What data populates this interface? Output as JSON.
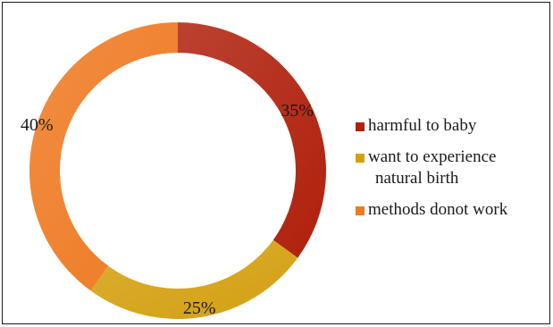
{
  "chart_data": {
    "type": "pie",
    "categories": [
      "harmful to baby",
      "want to experience natural birth",
      "methods donot work"
    ],
    "values": [
      35,
      25,
      40
    ],
    "data_labels": [
      "35%",
      "25%",
      "40%"
    ],
    "colors": [
      "#b0200c",
      "#d4a010",
      "#ee7a22"
    ],
    "legend_position": "right",
    "legend": [
      {
        "line1": "harmful to baby",
        "line2": ""
      },
      {
        "line1": "want to experience",
        "line2": "natural birth"
      },
      {
        "line1": "methods donot work",
        "line2": ""
      }
    ]
  }
}
